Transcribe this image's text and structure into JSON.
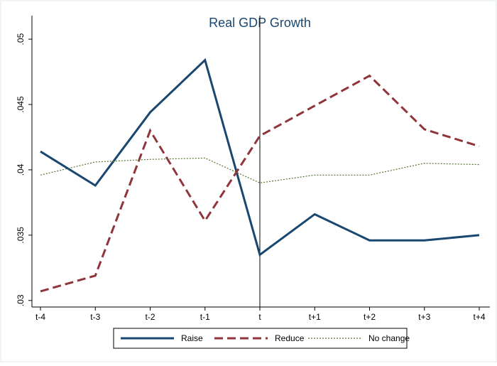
{
  "chart_data": {
    "type": "line",
    "title": "Real GDP Growth",
    "categories": [
      "t-4",
      "t-3",
      "t-2",
      "t-1",
      "t",
      "t+1",
      "t+2",
      "t+3",
      "t+4"
    ],
    "series": [
      {
        "name": "Raise",
        "color": "#1a476f",
        "dash": "solid",
        "values": [
          0.0414,
          0.0388,
          0.0444,
          0.0484,
          0.0335,
          0.0366,
          0.0346,
          0.0346,
          0.035
        ]
      },
      {
        "name": "Reduce",
        "color": "#90353b",
        "dash": "dashed",
        "values": [
          0.0307,
          0.0319,
          0.043,
          0.0361,
          0.0426,
          0.0449,
          0.0472,
          0.0431,
          0.0418
        ]
      },
      {
        "name": "No change",
        "color": "#55752f",
        "dash": "dotted",
        "values": [
          0.0396,
          0.0406,
          0.0408,
          0.0409,
          0.039,
          0.0396,
          0.0396,
          0.0405,
          0.0404
        ]
      }
    ],
    "ylim": [
      0.0295,
      0.0518
    ],
    "yticks": [
      {
        "value": 0.03,
        "label": ".03"
      },
      {
        "value": 0.035,
        "label": ".035"
      },
      {
        "value": 0.04,
        "label": ".04"
      },
      {
        "value": 0.045,
        "label": ".045"
      },
      {
        "value": 0.05,
        "label": ".05"
      }
    ],
    "vline_category": 4,
    "legend": "bottom"
  }
}
